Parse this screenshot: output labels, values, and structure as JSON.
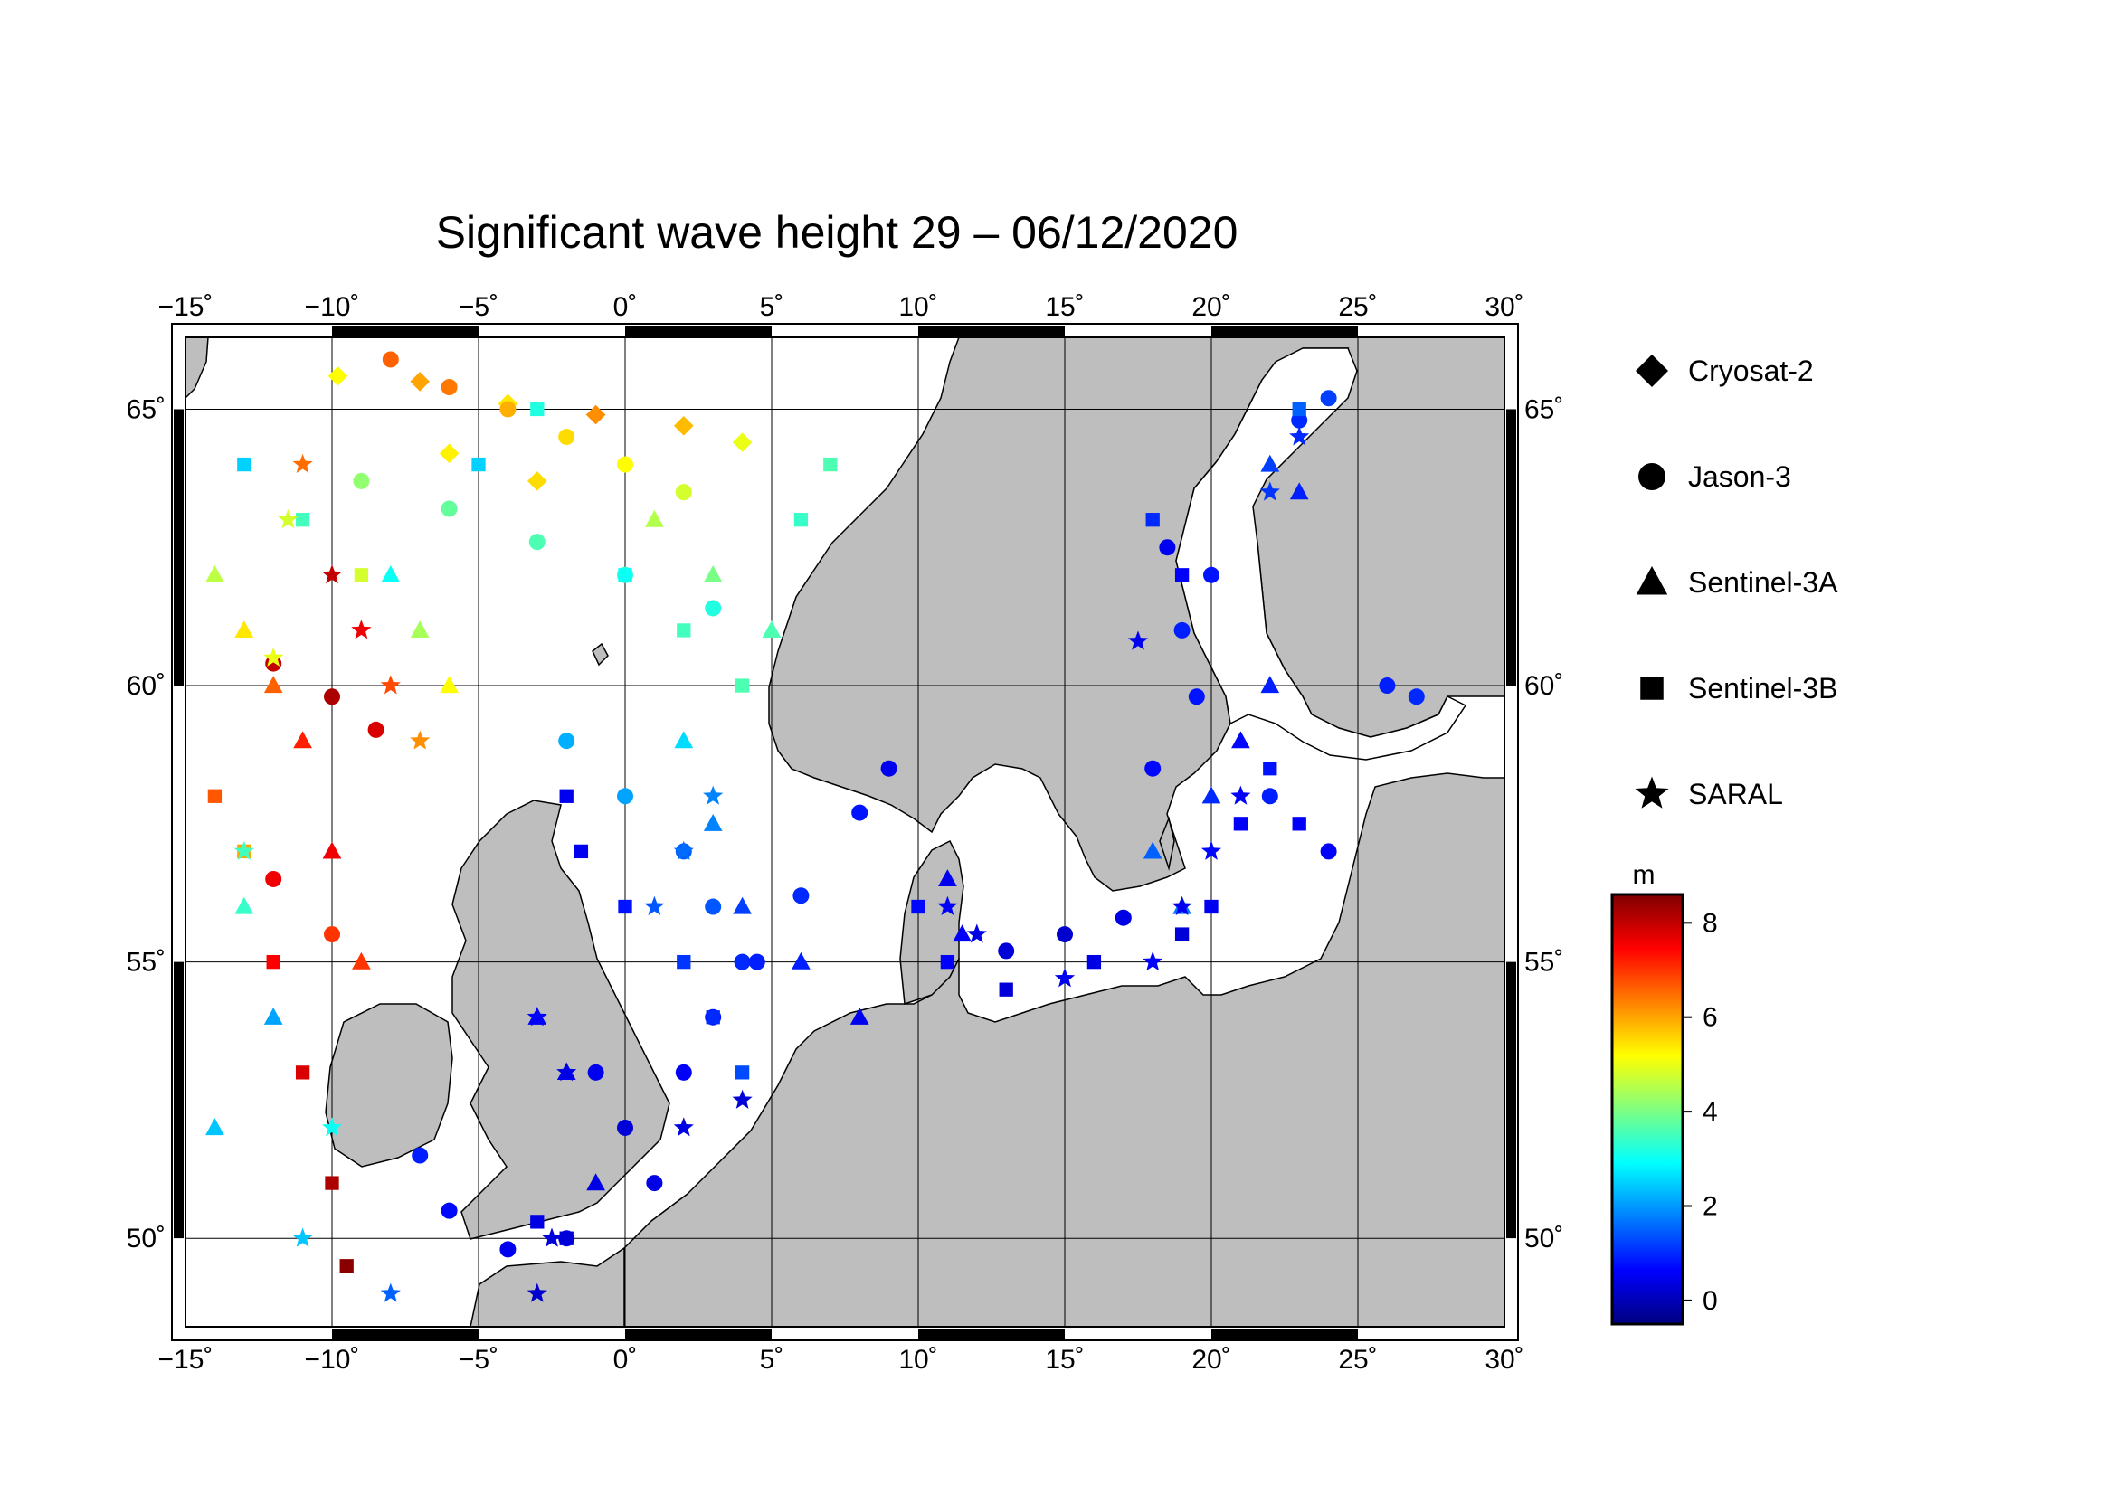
{
  "title": "Significant wave height 29 – 06/12/2020",
  "lon_ticks": [
    "−15˚",
    "−10˚",
    "−5˚",
    "0˚",
    "5˚",
    "10˚",
    "15˚",
    "20˚",
    "25˚",
    "30˚"
  ],
  "lat_ticks": [
    "65˚",
    "60˚",
    "55˚",
    "50˚"
  ],
  "legend": [
    {
      "label": "Cryosat-2",
      "symbol": "diamond"
    },
    {
      "label": "Jason-3",
      "symbol": "circle"
    },
    {
      "label": "Sentinel-3A",
      "symbol": "triangle"
    },
    {
      "label": "Sentinel-3B",
      "symbol": "square"
    },
    {
      "label": "SARAL",
      "symbol": "star"
    }
  ],
  "colorbar": {
    "unit": "m",
    "ticks": [
      "8",
      "6",
      "4",
      "2",
      "0"
    ],
    "colors": [
      "#7f0000",
      "#ff0000",
      "#ff8000",
      "#ffff00",
      "#80ff80",
      "#00ffff",
      "#0080ff",
      "#0000ff",
      "#00007f"
    ]
  },
  "colors": {
    "land": "#bebebe",
    "sea": "#ffffff",
    "frame": "#000000"
  },
  "chart_data": {
    "type": "scatter",
    "title": "Significant wave height 29 – 06/12/2020",
    "x_range_deg": [
      -15,
      30
    ],
    "y_range_deg": [
      48.4,
      66.3
    ],
    "color_scale_m": [
      -0.5,
      8.6
    ],
    "colorbar_label": "m",
    "series": [
      {
        "name": "Cryosat-2",
        "symbol": "diamond",
        "points": [
          [
            -9.8,
            65.6,
            5.2
          ],
          [
            -7,
            65.5,
            6
          ],
          [
            -4,
            65.1,
            5.4
          ],
          [
            -1,
            64.9,
            6.2
          ],
          [
            2,
            64.7,
            5.8
          ],
          [
            4,
            64.4,
            5
          ],
          [
            -6,
            64.2,
            5.3
          ],
          [
            -3,
            63.7,
            5.5
          ]
        ]
      },
      {
        "name": "Jason-3",
        "symbol": "circle",
        "points": [
          [
            -8,
            65.9,
            6.6
          ],
          [
            -6,
            65.4,
            6.4
          ],
          [
            -4,
            65,
            5.9
          ],
          [
            -2,
            64.5,
            5.5
          ],
          [
            0,
            64,
            5.2
          ],
          [
            2,
            63.5,
            4.8
          ],
          [
            -9,
            63.7,
            4.2
          ],
          [
            -6,
            63.2,
            3.8
          ],
          [
            -3,
            62.6,
            3.6
          ],
          [
            0,
            62,
            3.3
          ],
          [
            3,
            61.4,
            3.2
          ],
          [
            -12,
            60.4,
            8
          ],
          [
            -10,
            59.8,
            8.2
          ],
          [
            -8.5,
            59.2,
            7.8
          ],
          [
            -12,
            56.5,
            7.6
          ],
          [
            -10,
            55.5,
            7
          ],
          [
            -2,
            59,
            2.2
          ],
          [
            0,
            58,
            2.1
          ],
          [
            2,
            57,
            1.5
          ],
          [
            3,
            56,
            1.4
          ],
          [
            4,
            55,
            1
          ],
          [
            -1,
            53,
            0.5
          ],
          [
            0,
            52,
            0.3
          ],
          [
            1,
            51,
            0.4
          ],
          [
            -2,
            50,
            0.5
          ],
          [
            9,
            58.5,
            0.5
          ],
          [
            8,
            57.7,
            0.8
          ],
          [
            6,
            56.2,
            1
          ],
          [
            4.5,
            55,
            0.9
          ],
          [
            3,
            54,
            0.8
          ],
          [
            2,
            53,
            0.6
          ],
          [
            13,
            55.2,
            0.3
          ],
          [
            15,
            55.5,
            0.2
          ],
          [
            17,
            55.8,
            0.4
          ],
          [
            18,
            58.5,
            0.7
          ],
          [
            19.5,
            59.8,
            0.8
          ],
          [
            22,
            58,
            0.9
          ],
          [
            24,
            57,
            0.6
          ],
          [
            19,
            61,
            0.9
          ],
          [
            20,
            62,
            0.8
          ],
          [
            18.5,
            62.5,
            0.5
          ],
          [
            23,
            64.8,
            1
          ],
          [
            24,
            65.2,
            1.2
          ],
          [
            26,
            60,
            0.9
          ],
          [
            27,
            59.8,
            1
          ],
          [
            -7,
            51.5,
            0.9
          ],
          [
            -6,
            50.5,
            0.7
          ],
          [
            -4,
            49.8,
            0.5
          ]
        ]
      },
      {
        "name": "Sentinel-3A",
        "symbol": "triangle",
        "points": [
          [
            -14,
            62,
            4.6
          ],
          [
            -13,
            61,
            5.4
          ],
          [
            -12,
            60,
            6.6
          ],
          [
            -11,
            59,
            7.2
          ],
          [
            -10,
            57,
            7.6
          ],
          [
            -9,
            55,
            7
          ],
          [
            -13,
            56,
            3.4
          ],
          [
            -14,
            52,
            2.4
          ],
          [
            -12,
            54,
            2.1
          ],
          [
            -8,
            62,
            3
          ],
          [
            -7,
            61,
            4.4
          ],
          [
            -6,
            60,
            5.2
          ],
          [
            1,
            63,
            4.5
          ],
          [
            3,
            62,
            4
          ],
          [
            5,
            61,
            3.6
          ],
          [
            2,
            59,
            2.6
          ],
          [
            3,
            57.5,
            1.8
          ],
          [
            4,
            56,
            1.2
          ],
          [
            6,
            55,
            0.9
          ],
          [
            8,
            54,
            0.5
          ],
          [
            -3,
            54,
            0.6
          ],
          [
            -2,
            53,
            0.5
          ],
          [
            -1,
            51,
            0.4
          ],
          [
            11,
            56.5,
            0.5
          ],
          [
            11.5,
            55.5,
            0.6
          ],
          [
            18,
            57,
            1.5
          ],
          [
            19,
            56,
            1.7
          ],
          [
            20,
            58,
            1
          ],
          [
            21,
            59,
            0.7
          ],
          [
            22,
            60,
            0.9
          ],
          [
            22,
            64,
            1.2
          ],
          [
            23,
            63.5,
            0.9
          ]
        ]
      },
      {
        "name": "Sentinel-3B",
        "symbol": "square",
        "points": [
          [
            -14,
            58,
            6.7
          ],
          [
            -13,
            57,
            6
          ],
          [
            -12,
            55,
            7.5
          ],
          [
            -11,
            53,
            7.8
          ],
          [
            -10,
            51,
            8.2
          ],
          [
            -9.5,
            49.5,
            8.5
          ],
          [
            -13,
            64,
            2.5
          ],
          [
            -11,
            63,
            3.5
          ],
          [
            -9,
            62,
            4.8
          ],
          [
            -5,
            64,
            2.5
          ],
          [
            -3,
            65,
            3.2
          ],
          [
            0,
            62,
            3
          ],
          [
            2,
            61,
            3.5
          ],
          [
            4,
            60,
            3.6
          ],
          [
            6,
            63,
            3.4
          ],
          [
            7,
            64,
            3.6
          ],
          [
            -2,
            58,
            0.5
          ],
          [
            -1.5,
            57,
            0.5
          ],
          [
            0,
            56,
            0.8
          ],
          [
            2,
            55,
            1.1
          ],
          [
            3,
            54,
            1
          ],
          [
            4,
            53,
            1.3
          ],
          [
            10,
            56,
            0.7
          ],
          [
            11,
            55,
            0.6
          ],
          [
            13,
            54.5,
            0.3
          ],
          [
            16,
            55,
            0.4
          ],
          [
            19,
            55.5,
            0.3
          ],
          [
            20,
            56,
            0.5
          ],
          [
            21,
            57.5,
            0.6
          ],
          [
            22,
            58.5,
            0.8
          ],
          [
            23,
            57.5,
            0.6
          ],
          [
            18,
            63,
            1
          ],
          [
            19,
            62,
            0.6
          ],
          [
            23,
            65,
            1.5
          ],
          [
            -3,
            50.3,
            0.4
          ],
          [
            -2,
            50,
            0.3
          ]
        ]
      },
      {
        "name": "SARAL",
        "symbol": "star",
        "points": [
          [
            -10,
            62,
            8
          ],
          [
            -9,
            61,
            7.6
          ],
          [
            -8,
            60,
            6.8
          ],
          [
            -7,
            59,
            6.2
          ],
          [
            -11,
            64,
            6.5
          ],
          [
            -11.5,
            63,
            4.8
          ],
          [
            -12,
            60.5,
            5
          ],
          [
            -13,
            57,
            3.5
          ],
          [
            -10,
            52,
            3
          ],
          [
            -11,
            50,
            2.4
          ],
          [
            -8,
            49,
            1.5
          ],
          [
            -2,
            53,
            0.4
          ],
          [
            -3,
            54,
            0.6
          ],
          [
            1,
            56,
            1.4
          ],
          [
            2,
            57,
            1.6
          ],
          [
            3,
            58,
            1.8
          ],
          [
            4,
            52.5,
            0.3
          ],
          [
            2,
            52,
            0.4
          ],
          [
            -3,
            49,
            0.2
          ],
          [
            -2.5,
            50,
            0.3
          ],
          [
            11,
            56,
            0.6
          ],
          [
            12,
            55.5,
            0.4
          ],
          [
            15,
            54.7,
            0.5
          ],
          [
            18,
            55,
            0.6
          ],
          [
            19,
            56,
            0.5
          ],
          [
            20,
            57,
            0.7
          ],
          [
            21,
            58,
            0.6
          ],
          [
            22,
            63.5,
            1.1
          ],
          [
            23,
            64.5,
            1
          ],
          [
            17.5,
            60.8,
            0.5
          ]
        ]
      }
    ]
  }
}
